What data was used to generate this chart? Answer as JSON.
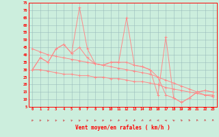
{
  "xlabel": "Vent moyen/en rafales ( km/h )",
  "background_color": "#cceedd",
  "grid_color": "#99bbbb",
  "line_color": "#ff8888",
  "line_color2": "#cc5555",
  "x_values": [
    0,
    1,
    2,
    3,
    4,
    5,
    6,
    7,
    8,
    9,
    10,
    11,
    12,
    13,
    14,
    15,
    16,
    17,
    18,
    19,
    20,
    21,
    22,
    23
  ],
  "rafales": [
    30,
    38,
    35,
    44,
    47,
    41,
    72,
    44,
    34,
    33,
    35,
    35,
    65,
    33,
    32,
    30,
    13,
    52,
    11,
    8,
    11,
    15,
    16,
    15
  ],
  "moyen": [
    30,
    38,
    35,
    44,
    47,
    41,
    45,
    38,
    34,
    33,
    35,
    35,
    35,
    33,
    32,
    30,
    25,
    13,
    11,
    8,
    11,
    15,
    16,
    15
  ],
  "trend_hi": [
    44,
    42,
    40,
    39,
    38,
    37,
    36,
    35,
    34,
    33,
    32,
    31,
    30,
    29,
    28,
    27,
    25,
    23,
    21,
    19,
    17,
    15,
    13,
    12
  ],
  "trend_lo": [
    30,
    30,
    29,
    28,
    27,
    27,
    26,
    26,
    25,
    25,
    24,
    24,
    23,
    22,
    22,
    21,
    20,
    18,
    17,
    16,
    15,
    14,
    13,
    13
  ],
  "ylim": [
    5,
    75
  ],
  "yticks": [
    5,
    10,
    15,
    20,
    25,
    30,
    35,
    40,
    45,
    50,
    55,
    60,
    65,
    70,
    75
  ],
  "xlim": [
    -0.5,
    23.5
  ],
  "wind_angles": [
    225,
    220,
    215,
    215,
    210,
    210,
    210,
    215,
    220,
    225,
    230,
    235,
    235,
    240,
    250,
    255,
    265,
    280,
    295,
    305,
    320,
    335,
    345,
    355
  ]
}
